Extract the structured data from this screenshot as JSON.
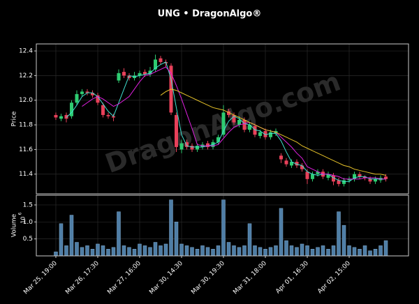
{
  "chart_data": [
    {
      "type": "candlestick",
      "title": "UNG • DragonAlgo®",
      "ylabel": "Price",
      "watermark": "DragonAlgo.com",
      "xlim": [
        -3.73,
        67.33
      ],
      "ylim": [
        11.24,
        12.457
      ],
      "yticks": [
        11.4,
        11.6,
        11.8,
        {
          "value": 12.0,
          "label": "12.0"
        },
        12.2,
        12.4
      ],
      "grid": true,
      "up_color": "#2ecc71",
      "down_color": "#e8415a",
      "open": [
        11.88,
        11.85,
        11.88,
        11.87,
        11.98,
        12.05,
        12.07,
        12.06,
        12.04,
        11.96,
        11.88,
        11.87,
        12.16,
        12.23,
        12.2,
        12.18,
        12.2,
        12.23,
        12.21,
        12.25,
        12.34,
        12.31,
        12.28,
        11.88,
        11.6,
        11.66,
        11.63,
        11.6,
        11.62,
        11.65,
        11.62,
        11.66,
        11.72,
        11.91,
        11.88,
        11.8,
        11.84,
        11.76,
        11.79,
        11.71,
        11.75,
        11.7,
        11.73,
        11.55,
        11.51,
        11.47,
        11.5,
        11.47,
        11.42,
        11.36,
        11.4,
        11.42,
        11.37,
        11.39,
        11.35,
        11.32,
        11.35,
        11.36,
        11.4,
        11.38,
        11.36,
        11.34,
        11.35,
        11.38
      ],
      "high": [
        11.9,
        11.89,
        11.9,
        12.0,
        12.08,
        12.09,
        12.09,
        12.08,
        12.06,
        11.98,
        11.9,
        11.89,
        12.25,
        12.26,
        12.22,
        12.23,
        12.24,
        12.25,
        12.27,
        12.37,
        12.36,
        12.33,
        12.3,
        11.9,
        11.68,
        11.68,
        11.65,
        11.65,
        11.66,
        11.67,
        11.68,
        11.72,
        11.96,
        11.93,
        11.9,
        11.87,
        11.86,
        11.82,
        11.81,
        11.76,
        11.77,
        11.76,
        11.77,
        11.57,
        11.53,
        11.52,
        11.52,
        11.49,
        11.44,
        11.42,
        11.44,
        11.44,
        11.42,
        11.41,
        11.37,
        11.37,
        11.38,
        11.42,
        11.42,
        11.39,
        11.38,
        11.38,
        11.39,
        11.4
      ],
      "low": [
        11.84,
        11.83,
        11.82,
        11.85,
        11.96,
        12.03,
        12.04,
        12.02,
        11.96,
        11.86,
        11.85,
        11.83,
        12.14,
        12.18,
        12.16,
        12.16,
        12.18,
        12.19,
        12.19,
        12.23,
        12.29,
        12.27,
        11.88,
        11.58,
        11.57,
        11.6,
        11.58,
        11.58,
        11.6,
        11.6,
        11.6,
        11.64,
        11.7,
        11.86,
        11.8,
        11.78,
        11.74,
        11.74,
        11.7,
        11.69,
        11.68,
        11.68,
        11.71,
        11.49,
        11.46,
        11.45,
        11.45,
        11.42,
        11.32,
        11.34,
        11.38,
        11.36,
        11.35,
        11.31,
        11.3,
        11.3,
        11.33,
        11.34,
        11.36,
        11.35,
        11.32,
        11.32,
        11.33,
        11.34
      ],
      "close": [
        11.86,
        11.87,
        11.85,
        11.98,
        12.05,
        12.07,
        12.06,
        12.04,
        11.98,
        11.88,
        11.87,
        11.86,
        12.22,
        12.2,
        12.18,
        12.2,
        12.22,
        12.21,
        12.24,
        12.33,
        12.31,
        12.3,
        11.9,
        11.62,
        11.65,
        11.62,
        11.6,
        11.63,
        11.64,
        11.62,
        11.66,
        11.7,
        11.9,
        11.88,
        11.82,
        11.84,
        11.76,
        11.8,
        11.72,
        11.74,
        11.7,
        11.74,
        11.75,
        11.52,
        11.48,
        11.5,
        11.47,
        11.44,
        11.36,
        11.4,
        11.42,
        11.38,
        11.4,
        11.34,
        11.32,
        11.35,
        11.36,
        11.4,
        11.38,
        11.37,
        11.34,
        11.36,
        11.37,
        11.36
      ],
      "lines": [
        {
          "color": "#40e0d0",
          "values": [
            null,
            null,
            11.86,
            11.9,
            11.96,
            12.03,
            12.06,
            12.06,
            12.03,
            11.97,
            11.91,
            11.87,
            11.98,
            12.09,
            12.2,
            12.19,
            12.2,
            12.21,
            12.22,
            12.26,
            12.29,
            12.31,
            12.17,
            11.94,
            11.72,
            11.63,
            11.62,
            11.62,
            11.62,
            11.63,
            11.64,
            11.66,
            11.75,
            11.83,
            11.87,
            11.85,
            11.81,
            11.8,
            11.76,
            11.75,
            11.72,
            11.73,
            11.73,
            11.67,
            11.58,
            11.5,
            11.48,
            11.47,
            11.42,
            11.4,
            11.39,
            11.4,
            11.4,
            11.37,
            11.35,
            11.34,
            11.34,
            11.37,
            11.38,
            11.38,
            11.36,
            11.36,
            11.36,
            11.36
          ]
        },
        {
          "color": "#e020e0",
          "values": [
            null,
            null,
            null,
            null,
            null,
            11.95,
            11.98,
            12.01,
            12.03,
            12.01,
            11.98,
            11.95,
            11.97,
            12.0,
            12.03,
            12.09,
            12.15,
            12.2,
            12.21,
            12.23,
            12.25,
            12.27,
            12.22,
            12.12,
            12.01,
            11.89,
            11.77,
            11.64,
            11.63,
            11.63,
            11.63,
            11.64,
            11.69,
            11.74,
            11.78,
            11.8,
            11.81,
            11.82,
            11.8,
            11.78,
            11.76,
            11.75,
            11.74,
            11.7,
            11.66,
            11.62,
            11.57,
            11.53,
            11.46,
            11.44,
            11.42,
            11.4,
            11.4,
            11.39,
            11.38,
            11.36,
            11.36,
            11.36,
            11.36,
            11.37,
            11.37,
            11.37,
            11.36,
            11.36
          ]
        },
        {
          "color": "#e6c229",
          "values": [
            null,
            null,
            null,
            null,
            null,
            null,
            null,
            null,
            null,
            null,
            null,
            null,
            null,
            null,
            null,
            null,
            null,
            null,
            null,
            null,
            12.04,
            12.07,
            12.09,
            12.08,
            12.06,
            12.04,
            12.02,
            12.0,
            11.98,
            11.96,
            11.94,
            11.93,
            11.92,
            11.9,
            11.88,
            11.86,
            11.84,
            11.82,
            11.8,
            11.78,
            11.76,
            11.75,
            11.74,
            11.72,
            11.7,
            11.68,
            11.66,
            11.63,
            11.61,
            11.59,
            11.57,
            11.55,
            11.53,
            11.51,
            11.49,
            11.47,
            11.46,
            11.44,
            11.43,
            11.42,
            11.41,
            11.4,
            11.4,
            11.39
          ]
        }
      ]
    },
    {
      "type": "bar",
      "ylabel": "Volume",
      "multiplier": {
        "base": "10",
        "exponent": "6"
      },
      "xlim": [
        -3.73,
        67.33
      ],
      "ylim": [
        0,
        1.786
      ],
      "yticks": [
        0.5,
        {
          "value": 1,
          "label": "1.0"
        },
        1.5
      ],
      "grid": true,
      "color": "#4f7ea6",
      "xticks": [
        {
          "value": 0,
          "label": "Mar 25, 19:00"
        },
        {
          "value": 8,
          "label": "Mar 26, 17:30"
        },
        {
          "value": 16,
          "label": "Mar 27, 16:00"
        },
        {
          "value": 24,
          "label": "Mar 30, 14:30"
        },
        {
          "value": 32,
          "label": "Mar 30, 19:30"
        },
        {
          "value": 40,
          "label": "Mar 31, 18:00"
        },
        {
          "value": 48,
          "label": "Apr 01, 16:30"
        },
        {
          "value": 56,
          "label": "Apr 02, 15:00"
        }
      ],
      "values": [
        0.12,
        0.95,
        0.3,
        1.2,
        0.4,
        0.25,
        0.3,
        0.2,
        0.35,
        0.3,
        0.2,
        0.25,
        1.3,
        0.3,
        0.25,
        0.2,
        0.35,
        0.3,
        0.25,
        0.4,
        0.3,
        0.35,
        1.65,
        1.0,
        0.35,
        0.3,
        0.25,
        0.2,
        0.3,
        0.25,
        0.2,
        0.3,
        1.65,
        0.4,
        0.3,
        0.25,
        0.3,
        0.95,
        0.3,
        0.25,
        0.2,
        0.25,
        0.3,
        1.4,
        0.45,
        0.3,
        0.25,
        0.35,
        0.3,
        0.2,
        0.25,
        0.3,
        0.2,
        0.3,
        1.3,
        0.9,
        0.3,
        0.25,
        0.2,
        0.3,
        0.15,
        0.2,
        0.3,
        0.45
      ]
    }
  ]
}
